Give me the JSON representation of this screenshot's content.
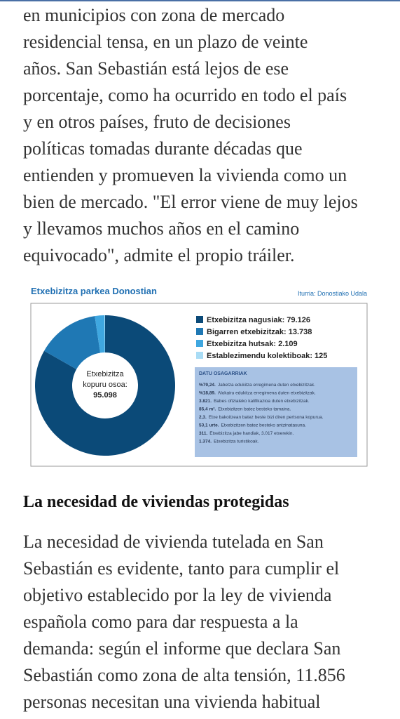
{
  "article": {
    "paragraph_1": [
      "en municipios con zona de mercado",
      "residencial tensa, en un plazo de veinte",
      "años. San Sebastián está lejos de ese",
      "porcentaje, como ha ocurrido en todo el país",
      "y en otros países, fruto de decisiones",
      "políticas tomadas durante décadas que",
      "entienden y promueven la vivienda como un",
      "bien de mercado. \"El error viene de muy lejos",
      "y llevamos muchos años en el camino",
      "equivocado\", admite el propio tráiler."
    ],
    "figure": {
      "chart_data": {
        "type": "pie",
        "title": "Etxebizitza parkea Donostian",
        "source": "Iturria: Donostiako Udala",
        "categories": [
          "Etxebizitza nagusiak: 79.126",
          "Bigarren etxebizitzak: 13.738",
          "Etxebizitza hutsak: 2.109",
          "Establezimendu kolektiboak: 125"
        ],
        "values": [
          79126,
          13738,
          2109,
          125
        ],
        "colors": [
          "#0b4a78",
          "#1f78b4",
          "#3fa7e0",
          "#a9dcf5"
        ],
        "center_label": [
          "Etxebizitza",
          "kopuru osoa:",
          "95.098"
        ],
        "notes": {
          "title": "DATU OSAGARRIAK",
          "rows": [
            [
              "%79,24.",
              "Jabetza edukitza erregimena duten etxebizitzak."
            ],
            [
              "%18,89.",
              "Alokairu edukitza erregimena duten etxebizitzak."
            ],
            [
              "3.821.",
              "Babes ofizialeko kalifikazioa duten etxebizitzak."
            ],
            [
              "85,4 m².",
              "Etxebizitzen batez besteko tamaina."
            ],
            [
              "2,3.",
              "Etxe bakoitzean batez beste bizi diren pertsona kopurua."
            ],
            [
              "53,1 urte.",
              "Etxebizitzen batez besteko antzinatasuna."
            ],
            [
              "311.",
              "Etxebizitza jabe handiak, 3.017 etxerekin."
            ],
            [
              "1.374.",
              "Etxebizitza turistikoak."
            ]
          ]
        }
      }
    },
    "heading": "La necesidad de viviendas protegidas",
    "paragraph_2": [
      "La necesidad de vivienda tutelada en San",
      "Sebastián es evidente, tanto para cumplir el",
      "objetivo establecido por la ley de vivienda",
      "española como para dar respuesta a la",
      "demanda: según el informe que declara San",
      "Sebastián como zona de alta tensión, 11.856",
      "personas necesitan una vivienda habitual"
    ]
  }
}
